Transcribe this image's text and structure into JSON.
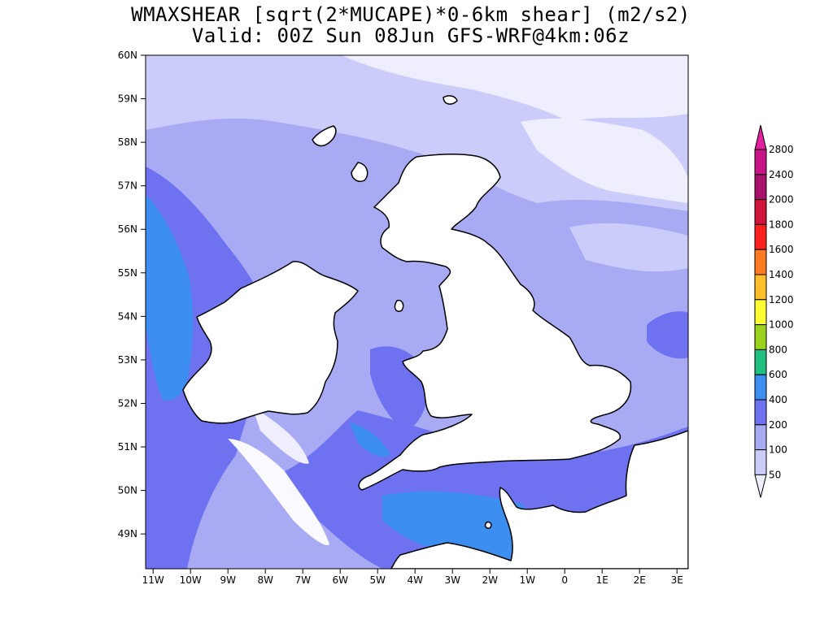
{
  "title_line1": "WMAXSHEAR [sqrt(2*MUCAPE)*0-6km shear] (m2/s2)",
  "title_line2": "Valid: 00Z Sun 08Jun GFS-WRF@4km:06z",
  "map": {
    "lon_range": [
      -11.2,
      3.3
    ],
    "lat_range": [
      48.2,
      60
    ],
    "lat_ticks": [
      {
        "value": 60,
        "label": "60N"
      },
      {
        "value": 59,
        "label": "59N"
      },
      {
        "value": 58,
        "label": "58N"
      },
      {
        "value": 57,
        "label": "57N"
      },
      {
        "value": 56,
        "label": "56N"
      },
      {
        "value": 55,
        "label": "55N"
      },
      {
        "value": 54,
        "label": "54N"
      },
      {
        "value": 53,
        "label": "53N"
      },
      {
        "value": 52,
        "label": "52N"
      },
      {
        "value": 51,
        "label": "51N"
      },
      {
        "value": 50,
        "label": "50N"
      },
      {
        "value": 49,
        "label": "49N"
      }
    ],
    "lon_ticks": [
      {
        "value": -11,
        "label": "11W"
      },
      {
        "value": -10,
        "label": "10W"
      },
      {
        "value": -9,
        "label": "9W"
      },
      {
        "value": -8,
        "label": "8W"
      },
      {
        "value": -7,
        "label": "7W"
      },
      {
        "value": -6,
        "label": "6W"
      },
      {
        "value": -5,
        "label": "5W"
      },
      {
        "value": -4,
        "label": "4W"
      },
      {
        "value": -3,
        "label": "3W"
      },
      {
        "value": -2,
        "label": "2W"
      },
      {
        "value": -1,
        "label": "1W"
      },
      {
        "value": 0,
        "label": "0"
      },
      {
        "value": 1,
        "label": "1E"
      },
      {
        "value": 2,
        "label": "2E"
      },
      {
        "value": 3,
        "label": "3E"
      }
    ]
  },
  "colorbar": {
    "levels": [
      {
        "label": "2800",
        "color": "#e0209c"
      },
      {
        "label": "2400",
        "color": "#c81486"
      },
      {
        "label": "2000",
        "color": "#a8106c"
      },
      {
        "label": "1800",
        "color": "#d0143c"
      },
      {
        "label": "1600",
        "color": "#ff2020"
      },
      {
        "label": "1400",
        "color": "#ff7a20"
      },
      {
        "label": "1200",
        "color": "#ffbe2c"
      },
      {
        "label": "1000",
        "color": "#ffff33"
      },
      {
        "label": "800",
        "color": "#9ad21e"
      },
      {
        "label": "600",
        "color": "#20c080"
      },
      {
        "label": "400",
        "color": "#3c8ef0"
      },
      {
        "label": "200",
        "color": "#6e72f0"
      },
      {
        "label": "100",
        "color": "#a8aaf4"
      },
      {
        "label": "50",
        "color": "#ccccfa"
      }
    ],
    "bottom_color": "#eeeefe"
  },
  "colors": {
    "land": "#ffffff",
    "coast": "#000000"
  }
}
